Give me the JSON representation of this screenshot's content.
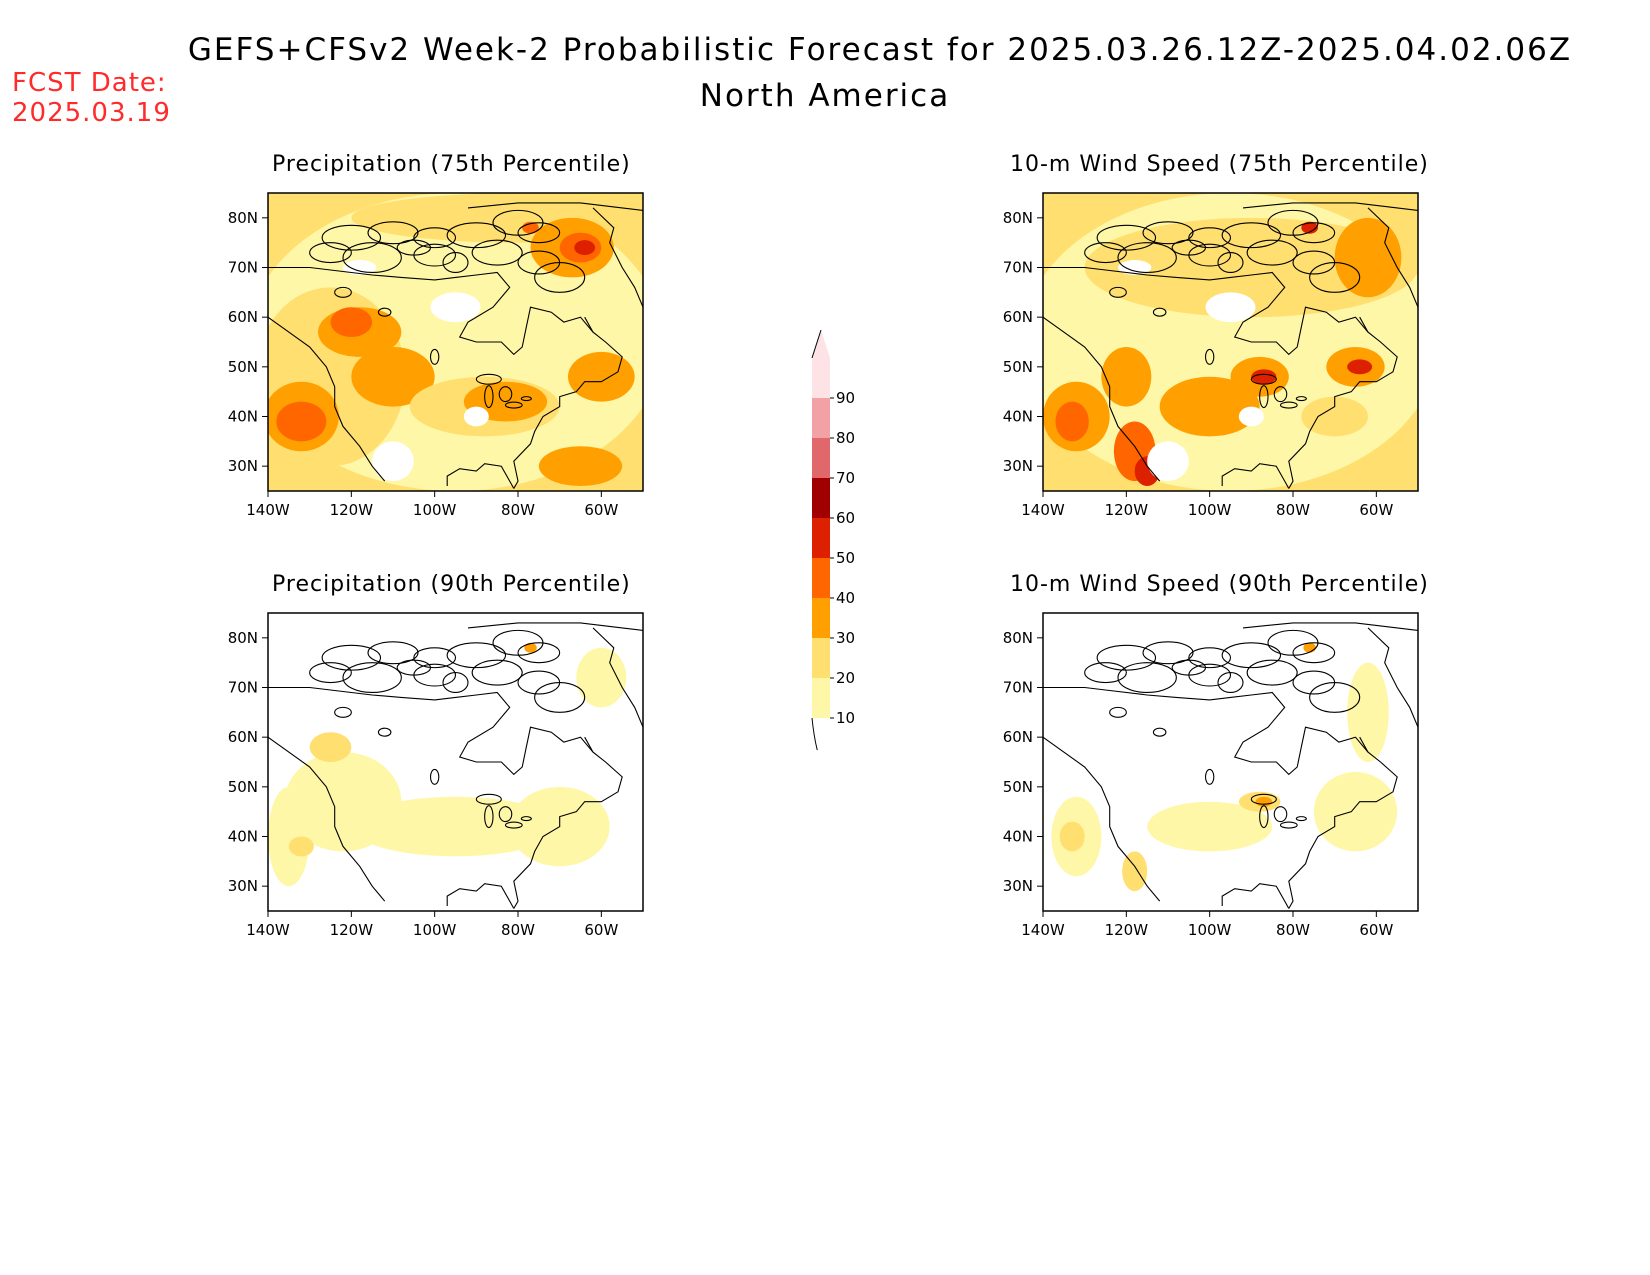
{
  "header": {
    "title": "GEFS+CFSv2 Week-2 Probabilistic Forecast for 2025.03.26.12Z-2025.04.02.06Z",
    "subtitle": "North America",
    "fcst_label": "FCST Date:",
    "fcst_date": "2025.03.19"
  },
  "axes": {
    "lat_labels": [
      "80N",
      "70N",
      "60N",
      "50N",
      "40N",
      "30N"
    ],
    "lon_labels": [
      "140W",
      "120W",
      "100W",
      "80W",
      "60W"
    ]
  },
  "panels": [
    {
      "id": "precip75",
      "title": "Precipitation (75th Percentile)",
      "intensity": "high"
    },
    {
      "id": "wind75",
      "title": "10-m Wind Speed (75th Percentile)",
      "intensity": "high"
    },
    {
      "id": "precip90",
      "title": "Precipitation (90th Percentile)",
      "intensity": "low"
    },
    {
      "id": "wind90",
      "title": "10-m Wind Speed (90th Percentile)",
      "intensity": "low"
    }
  ],
  "colorbar": {
    "levels": [
      "90",
      "80",
      "70",
      "60",
      "50",
      "40",
      "30",
      "20",
      "10"
    ],
    "colors": [
      "#fde3e6",
      "#f2a2a5",
      "#e0686a",
      "#a00000",
      "#dd2000",
      "#ff6600",
      "#ffa000",
      "#ffdf70",
      "#fff7a8"
    ]
  },
  "palette": {
    "c10": "#fff7a8",
    "c20": "#ffdf70",
    "c30": "#ffa000",
    "c40": "#ff6600",
    "c50": "#dd2000",
    "c60": "#a00000",
    "title_red": "#ff2a2a"
  }
}
